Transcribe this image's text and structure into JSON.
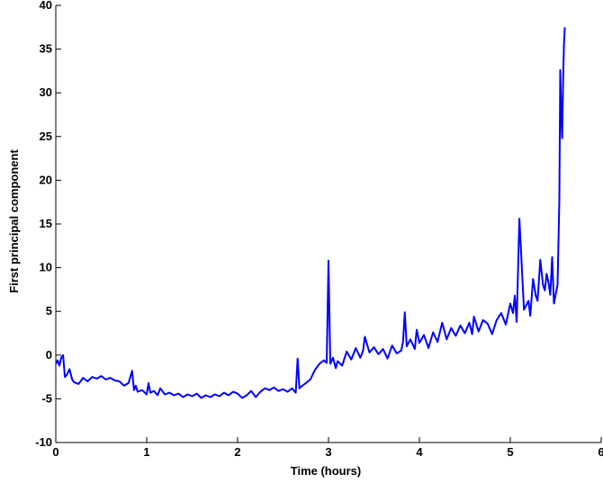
{
  "chart_data": {
    "type": "line",
    "title": "",
    "xlabel": "Time (hours)",
    "ylabel": "First principal component",
    "xlim": [
      0,
      6
    ],
    "ylim": [
      -10,
      40
    ],
    "x_ticks": [
      0,
      1,
      2,
      3,
      4,
      5,
      6
    ],
    "y_ticks": [
      -10,
      -5,
      0,
      5,
      10,
      15,
      20,
      25,
      30,
      35,
      40
    ],
    "grid": false,
    "series_color": "#0000ff",
    "series": [
      {
        "x": [
          0.0,
          0.02,
          0.04,
          0.06,
          0.08,
          0.1,
          0.12,
          0.15,
          0.18,
          0.2,
          0.25,
          0.3,
          0.35,
          0.4,
          0.45,
          0.5,
          0.55,
          0.6,
          0.65,
          0.7,
          0.75,
          0.8,
          0.84,
          0.86,
          0.88,
          0.9,
          0.95,
          1.0,
          1.02,
          1.04,
          1.08,
          1.12,
          1.15,
          1.2,
          1.25,
          1.3,
          1.35,
          1.4,
          1.45,
          1.5,
          1.55,
          1.6,
          1.65,
          1.7,
          1.75,
          1.8,
          1.85,
          1.9,
          1.95,
          2.0,
          2.05,
          2.1,
          2.15,
          2.2,
          2.25,
          2.3,
          2.35,
          2.4,
          2.45,
          2.5,
          2.55,
          2.6,
          2.64,
          2.66,
          2.68,
          2.7,
          2.75,
          2.8,
          2.85,
          2.9,
          2.95,
          2.98,
          3.0,
          3.02,
          3.05,
          3.08,
          3.1,
          3.15,
          3.2,
          3.25,
          3.3,
          3.35,
          3.38,
          3.4,
          3.45,
          3.5,
          3.55,
          3.6,
          3.65,
          3.7,
          3.75,
          3.8,
          3.82,
          3.84,
          3.86,
          3.9,
          3.95,
          3.97,
          4.0,
          4.05,
          4.1,
          4.15,
          4.2,
          4.25,
          4.3,
          4.35,
          4.4,
          4.45,
          4.5,
          4.55,
          4.58,
          4.6,
          4.65,
          4.7,
          4.75,
          4.8,
          4.85,
          4.9,
          4.95,
          5.0,
          5.03,
          5.05,
          5.07,
          5.1,
          5.15,
          5.2,
          5.22,
          5.25,
          5.28,
          5.3,
          5.33,
          5.36,
          5.38,
          5.4,
          5.42,
          5.44,
          5.46,
          5.48,
          5.5,
          5.52,
          5.54,
          5.55,
          5.56,
          5.57,
          5.58,
          5.59,
          5.6
        ],
        "y": [
          -1.0,
          -0.6,
          -1.2,
          -0.3,
          0.0,
          -2.5,
          -2.3,
          -1.6,
          -2.8,
          -3.1,
          -3.3,
          -2.6,
          -3.0,
          -2.5,
          -2.7,
          -2.4,
          -2.8,
          -2.6,
          -2.9,
          -3.0,
          -3.5,
          -3.2,
          -1.8,
          -4.0,
          -3.5,
          -4.2,
          -4.0,
          -4.5,
          -3.2,
          -4.3,
          -4.1,
          -4.6,
          -3.8,
          -4.5,
          -4.3,
          -4.6,
          -4.4,
          -4.8,
          -4.5,
          -4.7,
          -4.4,
          -4.9,
          -4.6,
          -4.8,
          -4.5,
          -4.7,
          -4.3,
          -4.6,
          -4.2,
          -4.4,
          -4.9,
          -4.6,
          -4.1,
          -4.8,
          -4.2,
          -3.8,
          -4.0,
          -3.7,
          -4.1,
          -3.9,
          -4.2,
          -3.8,
          -4.3,
          -0.4,
          -3.8,
          -3.6,
          -3.2,
          -2.8,
          -1.7,
          -1.0,
          -0.6,
          -0.9,
          10.8,
          -1.0,
          -0.3,
          -1.5,
          -0.7,
          -1.2,
          0.4,
          -0.5,
          0.8,
          -0.3,
          0.5,
          2.1,
          0.3,
          0.9,
          0.1,
          0.7,
          -0.4,
          1.1,
          0.2,
          0.5,
          1.5,
          4.9,
          1.0,
          1.8,
          0.7,
          2.9,
          1.4,
          2.3,
          0.8,
          2.6,
          1.5,
          3.7,
          1.8,
          3.1,
          2.2,
          3.4,
          2.5,
          3.7,
          2.4,
          4.4,
          2.7,
          4.0,
          3.6,
          2.4,
          4.0,
          4.8,
          3.5,
          5.9,
          4.8,
          6.8,
          3.8,
          15.6,
          5.2,
          6.2,
          4.5,
          8.7,
          6.8,
          6.2,
          10.9,
          8.0,
          7.4,
          9.3,
          8.3,
          6.9,
          11.2,
          5.9,
          7.0,
          8.0,
          17.8,
          32.6,
          27.5,
          24.8,
          31.0,
          35.5,
          37.5
        ]
      }
    ]
  }
}
